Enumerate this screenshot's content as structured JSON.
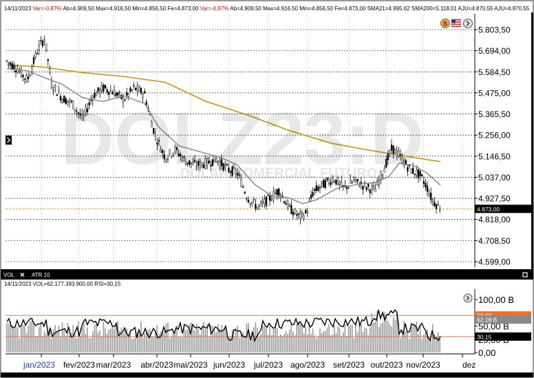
{
  "header": {
    "date": "14/11/2023",
    "var_label": "Var=",
    "var_value": "-0,87%",
    "items": [
      "Ab=4.909,50",
      "Max=4.916,50",
      "Min=4.856,50",
      "Fe=4.873,00"
    ],
    "items2": [
      "Ab=4.909,50",
      "Max=4.916,50",
      "Min=4.856,50",
      "Fe=4.873,00",
      "SMA21=4.995,62",
      "SMA200=5.118,01",
      "AJU=4.870,55",
      "AJU=4.870,55"
    ]
  },
  "watermark": {
    "symbol": "DOLZ23:D",
    "subtitle": "DOLAR COMERCIAL FUTURO"
  },
  "icons": {
    "currency": "dollar-circle-icon",
    "flag": "us-flag-icon",
    "nav": "chevron-right-circle-icon",
    "side_arrow": "arrow-right-icon"
  },
  "colors": {
    "background": "#ffffff",
    "sma200": "#c8a020",
    "sma21": "#8a8a8a",
    "candle": "#000000",
    "price_line": "#f0a020",
    "rsi": "#000000",
    "volume": "#9a9a9a",
    "rsi70": "#f07030",
    "rsi30": "#e07050",
    "panel_bar": "#000000"
  },
  "price_tag": "4.873,00",
  "lower_panel": {
    "tabs": [
      "VOL",
      "ATR 10"
    ],
    "close_icon": "close-icon",
    "info": "14/11/2023 VOL=62.177.393.900,00 RSI=30,15",
    "tags": {
      "rsi70": "70,00",
      "vol": "62,18 B",
      "rsi": "30,15"
    }
  },
  "chart_data": {
    "type": "candlestick",
    "price_axis": {
      "ticks": [
        "5.803,50",
        "5.694,00",
        "5.584,50",
        "5.475,00",
        "5.365,50",
        "5.256,00",
        "5.146,50",
        "5.037,00",
        "4.927,50",
        "4.818,00",
        "4.708,50",
        "4.599,00"
      ],
      "ylim": [
        4599,
        5803.5
      ]
    },
    "x_ticks": [
      "jan/2023",
      "fev/2023",
      "mar/2023",
      "abr/2023",
      "mai/2023",
      "jun/2023",
      "jul/2023",
      "ago/2023",
      "set/2023",
      "out/2023",
      "nov/2023",
      "dez"
    ],
    "series": [
      {
        "name": "SMA21",
        "last": 4995.62
      },
      {
        "name": "SMA200",
        "last": 5118.01
      }
    ],
    "last_close": 4873.0,
    "monthly_closes": {
      "months": [
        "jan",
        "fev",
        "mar",
        "abr",
        "mai",
        "jun",
        "jul",
        "ago",
        "set",
        "out",
        "nov"
      ],
      "values": [
        5560,
        5470,
        5420,
        5160,
        5080,
        4900,
        4900,
        4990,
        5050,
        5210,
        4873
      ]
    },
    "lower": {
      "volume_axis": [
        "100,00 B",
        "50,00 B",
        "25,00 B",
        "0,00"
      ],
      "volume_last": 62.18,
      "rsi_last": 30.15,
      "rsi_levels": [
        70,
        30
      ]
    }
  }
}
